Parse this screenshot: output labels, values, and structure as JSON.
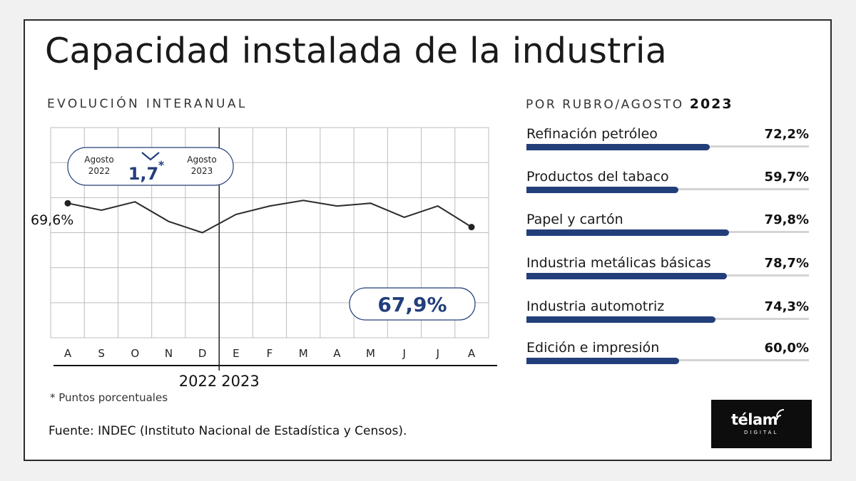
{
  "title": "Capacidad instalada de la industria",
  "subtitle_left": "EVOLUCIÓN INTERANUAL",
  "subtitle_right_prefix": "POR RUBRO/AGOSTO ",
  "subtitle_right_year": "2023",
  "colors": {
    "accent": "#233f7a",
    "line": "#2b2b2b",
    "grid": "#bdbdbd"
  },
  "chart_data": [
    {
      "type": "line",
      "categories": [
        "A",
        "S",
        "O",
        "N",
        "D",
        "E",
        "F",
        "M",
        "A",
        "M",
        "J",
        "J",
        "A"
      ],
      "years": [
        "2022",
        "2023"
      ],
      "values": [
        69.6,
        69.1,
        69.7,
        68.3,
        67.5,
        68.8,
        69.4,
        69.8,
        69.4,
        69.6,
        68.6,
        69.4,
        67.9
      ],
      "ylim": [
        60,
        75
      ],
      "grid": true,
      "annotations": {
        "start_label": "69,6%",
        "end_label": "67,9%",
        "compare_left": [
          "Agosto",
          "2022"
        ],
        "compare_right": [
          "Agosto",
          "2023"
        ],
        "change": "1,7",
        "change_mark": "*"
      }
    },
    {
      "type": "bar",
      "orientation": "horizontal",
      "max": 100,
      "categories": [
        "Refinación petróleo",
        "Productos del tabaco",
        "Papel y cartón",
        "Industria metálicas básicas",
        "Industria automotriz",
        "Edición e impresión"
      ],
      "values": [
        72.2,
        59.7,
        79.8,
        78.7,
        74.3,
        60.0
      ],
      "value_labels": [
        "72,2%",
        "59,7%",
        "79,8%",
        "78,7%",
        "74,3%",
        "60,0%"
      ]
    }
  ],
  "footnote": "* Puntos porcentuales",
  "source": "Fuente: INDEC (Instituto Nacional de Estadística y Censos).",
  "logo": {
    "word": "télam",
    "sub": "DIGITAL"
  }
}
